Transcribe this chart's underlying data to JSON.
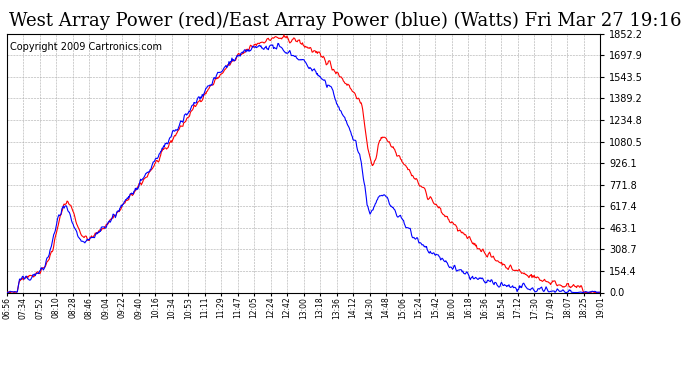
{
  "title": "West Array Power (red)/East Array Power (blue) (Watts) Fri Mar 27 19:16",
  "copyright": "Copyright 2009 Cartronics.com",
  "y_ticks": [
    0.0,
    154.4,
    308.7,
    463.1,
    617.4,
    771.8,
    926.1,
    1080.5,
    1234.8,
    1389.2,
    1543.5,
    1697.9,
    1852.2
  ],
  "y_max": 1852.2,
  "y_min": 0.0,
  "x_labels": [
    "06:56",
    "07:34",
    "07:52",
    "08:10",
    "08:28",
    "08:46",
    "09:04",
    "09:22",
    "09:40",
    "10:16",
    "10:34",
    "10:53",
    "11:11",
    "11:29",
    "11:47",
    "12:05",
    "12:24",
    "12:42",
    "13:00",
    "13:18",
    "13:36",
    "14:12",
    "14:30",
    "14:48",
    "15:06",
    "15:24",
    "15:42",
    "16:00",
    "16:18",
    "16:36",
    "16:54",
    "17:12",
    "17:30",
    "17:49",
    "18:07",
    "18:25",
    "19:01"
  ],
  "bg_color": "#ffffff",
  "plot_bg_color": "#ffffff",
  "grid_color": "#aaaaaa",
  "red_color": "#ff0000",
  "blue_color": "#0000ff",
  "title_fontsize": 13,
  "copyright_fontsize": 7
}
